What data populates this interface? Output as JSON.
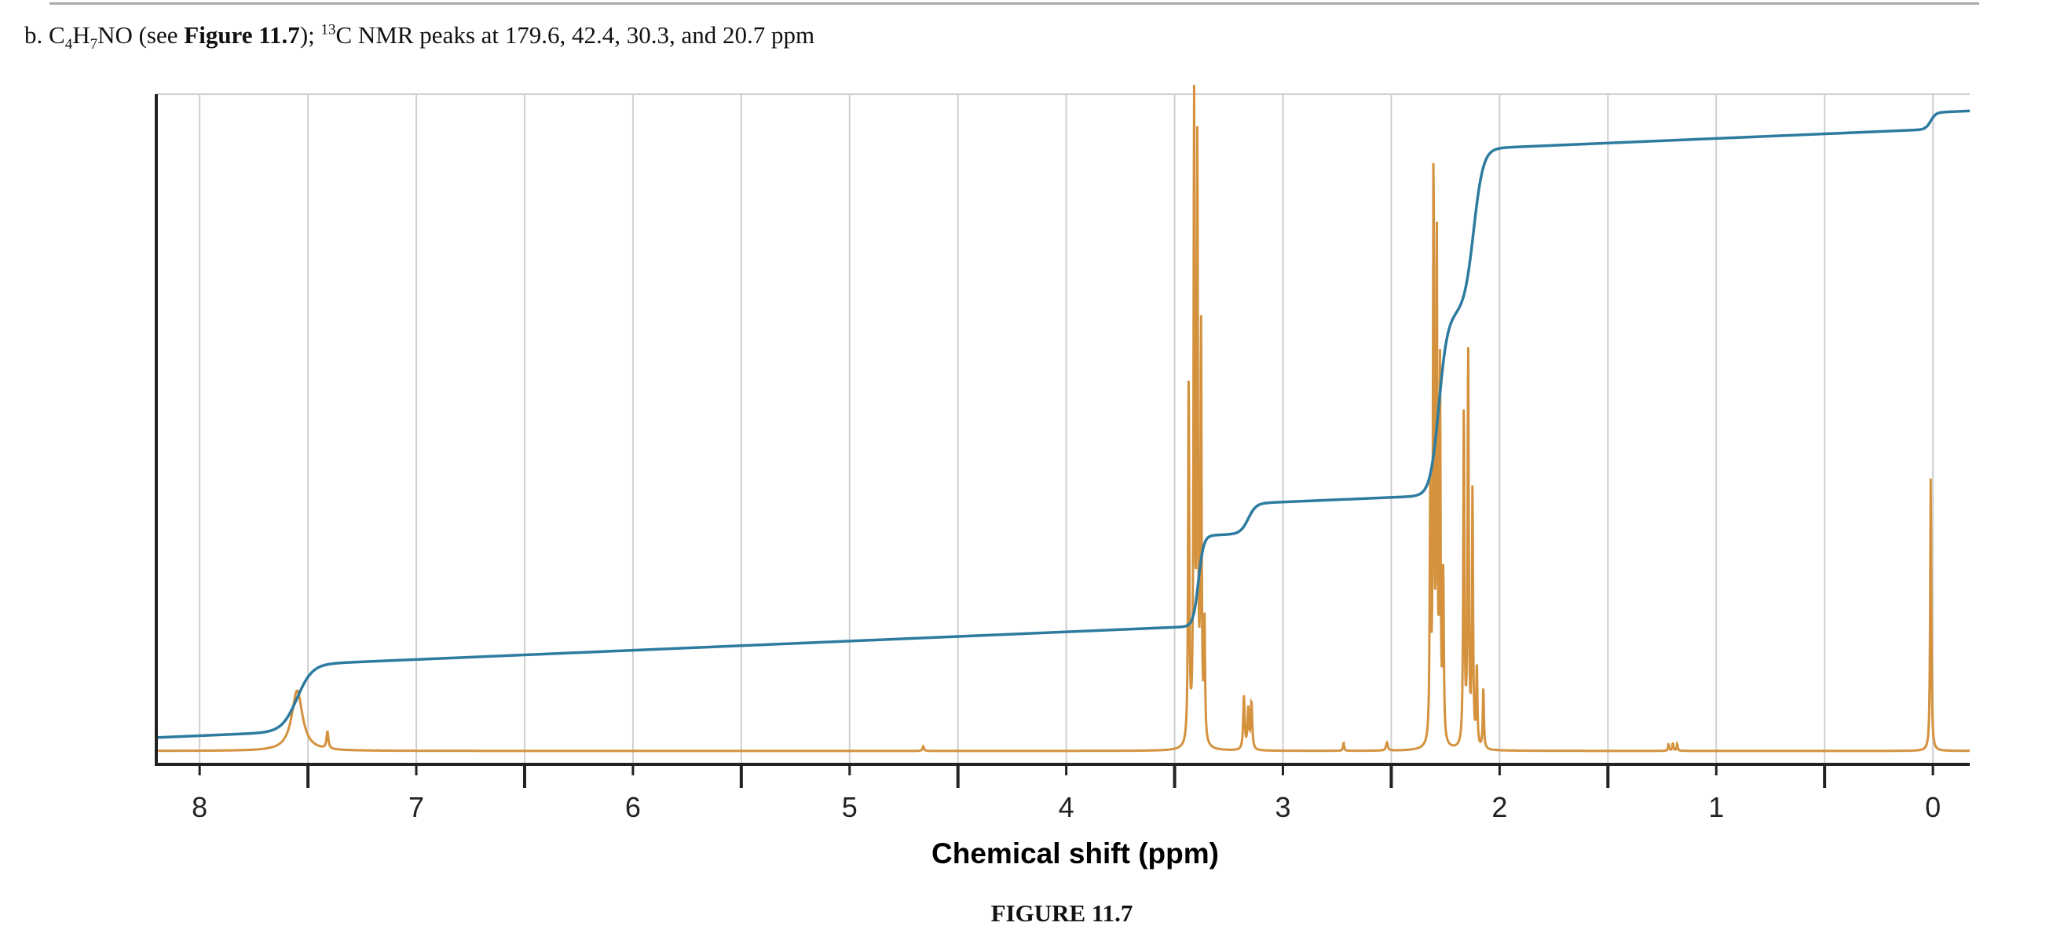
{
  "problem": {
    "prefix": "b. C",
    "sub1": "4",
    "h": "H",
    "sub2": "7",
    "rest": "NO (see ",
    "figure_ref": "Figure 11.7",
    "after_ref": "); ",
    "sup": "13",
    "nmr_text": "C NMR peaks at 179.6, 42.4, 30.3, and 20.7 ppm"
  },
  "caption": "FIGURE 11.7",
  "colors": {
    "spectrum": "#d4923e",
    "integral": "#2e7ba0",
    "grid": "#cfcfcf",
    "axis": "#222222"
  },
  "chart_data": {
    "type": "line",
    "title": "",
    "xlabel": "Chemical shift (ppm)",
    "ylabel": "",
    "xlim": [
      8.2,
      -0.17
    ],
    "ylim": [
      0,
      1
    ],
    "x_reversed": true,
    "x_ticks": [
      "8",
      "7",
      "6",
      "5",
      "4",
      "3",
      "2",
      "1",
      "0"
    ],
    "x_tick_values": [
      8,
      7,
      6,
      5,
      4,
      3,
      2,
      1,
      0
    ],
    "minor_ticks": [
      7.5,
      6.5,
      5.5,
      4.5,
      3.5,
      2.5,
      1.5,
      0.5
    ],
    "grid": true,
    "legend": "none",
    "series": [
      {
        "kind": "spectrum",
        "baseline": 0.02,
        "peaks": [
          {
            "x": 7.55,
            "height": 0.09,
            "width": 0.03
          },
          {
            "x": 7.41,
            "height": 0.026,
            "width": 0.005
          },
          {
            "x": 4.66,
            "height": 0.007,
            "width": 0.004
          },
          {
            "x": 3.435,
            "height": 0.55,
            "width": 0.003
          },
          {
            "x": 3.41,
            "height": 0.95,
            "width": 0.003
          },
          {
            "x": 3.395,
            "height": 0.88,
            "width": 0.003
          },
          {
            "x": 3.378,
            "height": 0.62,
            "width": 0.003
          },
          {
            "x": 3.362,
            "height": 0.18,
            "width": 0.003
          },
          {
            "x": 3.18,
            "height": 0.08,
            "width": 0.004
          },
          {
            "x": 3.16,
            "height": 0.06,
            "width": 0.004
          },
          {
            "x": 3.145,
            "height": 0.07,
            "width": 0.004
          },
          {
            "x": 2.72,
            "height": 0.012,
            "width": 0.003
          },
          {
            "x": 2.52,
            "height": 0.012,
            "width": 0.005
          },
          {
            "x": 2.32,
            "height": 0.37,
            "width": 0.003
          },
          {
            "x": 2.305,
            "height": 0.86,
            "width": 0.003
          },
          {
            "x": 2.29,
            "height": 0.75,
            "width": 0.003
          },
          {
            "x": 2.275,
            "height": 0.55,
            "width": 0.003
          },
          {
            "x": 2.26,
            "height": 0.25,
            "width": 0.003
          },
          {
            "x": 2.165,
            "height": 0.51,
            "width": 0.003
          },
          {
            "x": 2.145,
            "height": 0.59,
            "width": 0.003
          },
          {
            "x": 2.125,
            "height": 0.38,
            "width": 0.003
          },
          {
            "x": 2.105,
            "height": 0.12,
            "width": 0.003
          },
          {
            "x": 2.075,
            "height": 0.09,
            "width": 0.003
          },
          {
            "x": 1.22,
            "height": 0.01,
            "width": 0.003
          },
          {
            "x": 1.2,
            "height": 0.012,
            "width": 0.003
          },
          {
            "x": 1.18,
            "height": 0.01,
            "width": 0.003
          },
          {
            "x": 0.01,
            "height": 0.41,
            "width": 0.003
          }
        ]
      },
      {
        "kind": "integral",
        "start": 0.04,
        "end": 0.975,
        "steps": [
          {
            "x": 7.55,
            "rise": 0.1,
            "width": 0.035
          },
          {
            "x": 3.39,
            "rise": 0.135,
            "width": 0.012
          },
          {
            "x": 3.16,
            "rise": 0.045,
            "width": 0.018
          },
          {
            "x": 2.28,
            "rise": 0.27,
            "width": 0.02
          },
          {
            "x": 2.12,
            "rise": 0.245,
            "width": 0.022
          },
          {
            "x": 0.01,
            "rise": 0.025,
            "width": 0.012
          }
        ],
        "drift": 0.03
      }
    ]
  }
}
